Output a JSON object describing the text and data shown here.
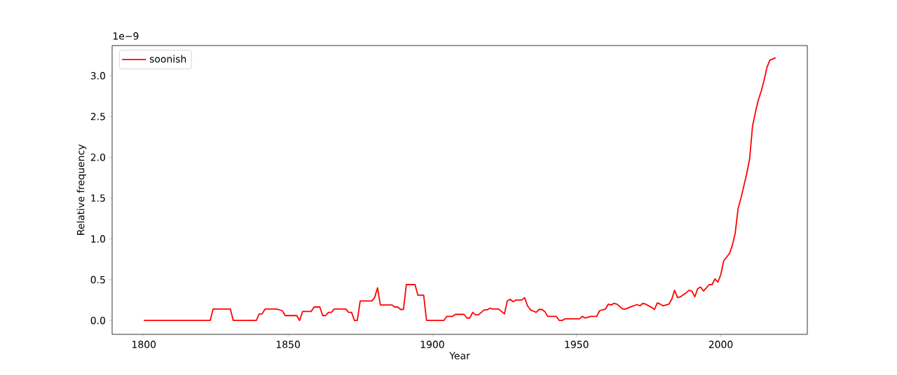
{
  "chart_data": {
    "type": "line",
    "xlabel": "Year",
    "ylabel": "Relative frequency",
    "annotations": [
      "1e−9"
    ],
    "legend": "top left",
    "grid": false,
    "line_style": "solid",
    "marker": "none",
    "xlim": [
      1789,
      2030
    ],
    "ylim": [
      -0.17,
      3.37
    ],
    "xticks": [
      1800,
      1850,
      1900,
      1950,
      2000
    ],
    "yticks": [
      {
        "value": 0,
        "label": "0.0"
      },
      {
        "value": 0.5,
        "label": "0.5"
      },
      {
        "value": 1,
        "label": "1.0"
      },
      {
        "value": 1.5,
        "label": "1.5"
      },
      {
        "value": 2,
        "label": "2.0"
      },
      {
        "value": 2.5,
        "label": "2.5"
      },
      {
        "value": 3,
        "label": "3.0"
      }
    ],
    "series": [
      {
        "name": "soonish",
        "color": "#ff0000",
        "x": [
          1800,
          1823,
          1824,
          1830,
          1831,
          1839,
          1840,
          1841,
          1842,
          1846,
          1848,
          1849,
          1853,
          1854,
          1855,
          1858,
          1859,
          1861,
          1862,
          1863,
          1864,
          1865,
          1866,
          1870,
          1871,
          1872,
          1873,
          1874,
          1875,
          1879,
          1880,
          1881,
          1882,
          1886,
          1887,
          1888,
          1889,
          1890,
          1891,
          1894,
          1895,
          1897,
          1898,
          1904,
          1905,
          1907,
          1908,
          1911,
          1912,
          1913,
          1914,
          1915,
          1916,
          1918,
          1919,
          1920,
          1921,
          1923,
          1925,
          1926,
          1927,
          1928,
          1929,
          1931,
          1932,
          1933,
          1934,
          1936,
          1937,
          1938,
          1939,
          1940,
          1943,
          1944,
          1945,
          1946,
          1951,
          1952,
          1953,
          1955,
          1957,
          1958,
          1960,
          1961,
          1962,
          1963,
          1964,
          1966,
          1967,
          1969,
          1971,
          1972,
          1973,
          1974,
          1976,
          1977,
          1978,
          1979,
          1980,
          1982,
          1983,
          1984,
          1985,
          1986,
          1988,
          1989,
          1990,
          1991,
          1992,
          1993,
          1994,
          1995,
          1996,
          1997,
          1998,
          1999,
          2000,
          2001,
          2003,
          2004,
          2005,
          2006,
          2007,
          2009,
          2010,
          2011,
          2012,
          2013,
          2014,
          2015,
          2016,
          2017,
          2019
        ],
        "values": [
          0,
          0,
          0.14,
          0.14,
          0,
          0,
          0.08,
          0.08,
          0.14,
          0.14,
          0.12,
          0.06,
          0.06,
          0,
          0.11,
          0.11,
          0.165,
          0.165,
          0.06,
          0.06,
          0.1,
          0.1,
          0.14,
          0.14,
          0.1,
          0.1,
          0,
          0,
          0.24,
          0.24,
          0.28,
          0.4,
          0.19,
          0.19,
          0.165,
          0.165,
          0.135,
          0.135,
          0.44,
          0.44,
          0.31,
          0.31,
          0,
          0,
          0.05,
          0.05,
          0.075,
          0.075,
          0.03,
          0.03,
          0.1,
          0.07,
          0.07,
          0.13,
          0.13,
          0.15,
          0.14,
          0.14,
          0.08,
          0.24,
          0.26,
          0.23,
          0.25,
          0.25,
          0.28,
          0.18,
          0.13,
          0.1,
          0.135,
          0.135,
          0.11,
          0.05,
          0.05,
          0,
          0,
          0.02,
          0.02,
          0.05,
          0.03,
          0.05,
          0.05,
          0.12,
          0.14,
          0.2,
          0.19,
          0.21,
          0.2,
          0.14,
          0.14,
          0.17,
          0.195,
          0.18,
          0.21,
          0.2,
          0.16,
          0.135,
          0.215,
          0.2,
          0.18,
          0.2,
          0.26,
          0.37,
          0.28,
          0.29,
          0.34,
          0.37,
          0.36,
          0.29,
          0.39,
          0.41,
          0.36,
          0.4,
          0.44,
          0.44,
          0.51,
          0.47,
          0.56,
          0.73,
          0.82,
          0.92,
          1.07,
          1.37,
          1.5,
          1.8,
          1.98,
          2.38,
          2.55,
          2.7,
          2.81,
          2.94,
          3.1,
          3.19,
          3.22
        ]
      }
    ]
  }
}
